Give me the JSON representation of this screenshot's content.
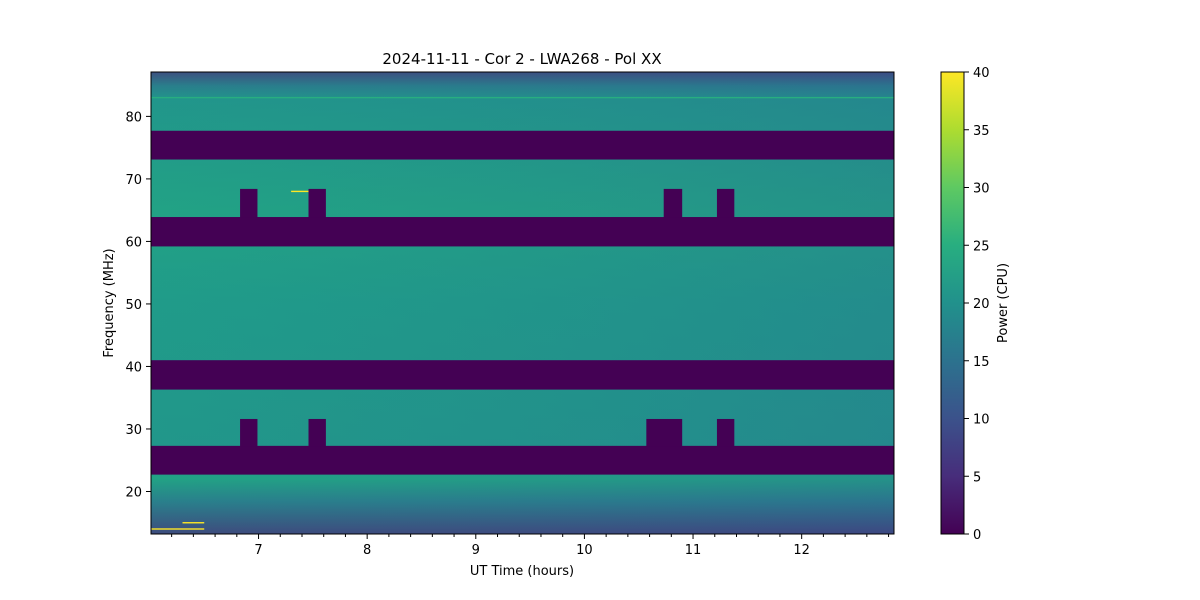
{
  "chart_data": {
    "type": "heatmap",
    "title": "2024-11-11 - Cor 2 - LWA268 - Pol XX",
    "xlabel": "UT Time (hours)",
    "ylabel": "Frequency (MHz)",
    "xlim": [
      6.01,
      12.85
    ],
    "ylim": [
      13.2,
      87.1
    ],
    "xticks": [
      7,
      8,
      9,
      10,
      11,
      12
    ],
    "xtick_labels": [
      "7",
      "8",
      "9",
      "10",
      "11",
      "12"
    ],
    "yticks": [
      20,
      30,
      40,
      50,
      60,
      70,
      80
    ],
    "ytick_labels": [
      "20",
      "30",
      "40",
      "50",
      "60",
      "70",
      "80"
    ],
    "colorbar": {
      "label": "Power (CPU)",
      "range": [
        0,
        40
      ],
      "ticks": [
        0,
        5,
        10,
        15,
        20,
        25,
        30,
        35,
        40
      ],
      "tick_labels": [
        "0",
        "5",
        "10",
        "15",
        "20",
        "25",
        "30",
        "35",
        "40"
      ],
      "colormap": "viridis"
    },
    "background_power": 22,
    "zero_power_bands_mhz": [
      [
        73.1,
        77.7
      ],
      [
        59.2,
        63.9
      ],
      [
        36.3,
        41.0
      ],
      [
        22.7,
        27.3
      ]
    ],
    "zero_power_notches": [
      {
        "freq": [
          63.9,
          68.4
        ],
        "time": [
          6.83,
          6.99
        ]
      },
      {
        "freq": [
          63.9,
          68.4
        ],
        "time": [
          7.46,
          7.62
        ]
      },
      {
        "freq": [
          63.9,
          68.4
        ],
        "time": [
          10.73,
          10.9
        ]
      },
      {
        "freq": [
          63.9,
          68.4
        ],
        "time": [
          11.22,
          11.38
        ]
      },
      {
        "freq": [
          27.3,
          31.6
        ],
        "time": [
          6.83,
          6.99
        ]
      },
      {
        "freq": [
          27.3,
          31.6
        ],
        "time": [
          7.46,
          7.62
        ]
      },
      {
        "freq": [
          27.3,
          31.6
        ],
        "time": [
          10.57,
          10.9
        ]
      },
      {
        "freq": [
          27.3,
          31.6
        ],
        "time": [
          11.22,
          11.38
        ]
      }
    ],
    "rfi_lines": [
      {
        "freq": 68.0,
        "time": [
          7.3,
          7.5
        ],
        "power": 38
      },
      {
        "freq": 83.0,
        "time": [
          6.01,
          12.85
        ],
        "power": 27
      },
      {
        "freq": 14.0,
        "time": [
          6.01,
          6.5
        ],
        "power": 40
      },
      {
        "freq": 15.0,
        "time": [
          6.3,
          6.5
        ],
        "power": 40
      }
    ],
    "colors": {
      "zero": "#440154",
      "mid": "#21908d",
      "high": "#fde725"
    }
  }
}
